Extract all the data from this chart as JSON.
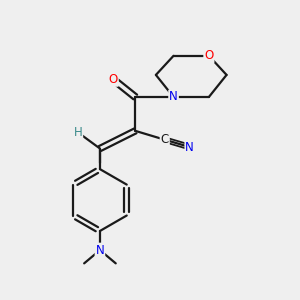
{
  "bg_color": "#efefef",
  "bond_color": "#1a1a1a",
  "bond_width": 1.6,
  "atom_colors": {
    "O": "#ff0000",
    "N": "#0000ee",
    "C": "#1a1a1a",
    "H": "#3a8a8a"
  },
  "font_size_atom": 8.5,
  "font_size_methyl": 7.5
}
